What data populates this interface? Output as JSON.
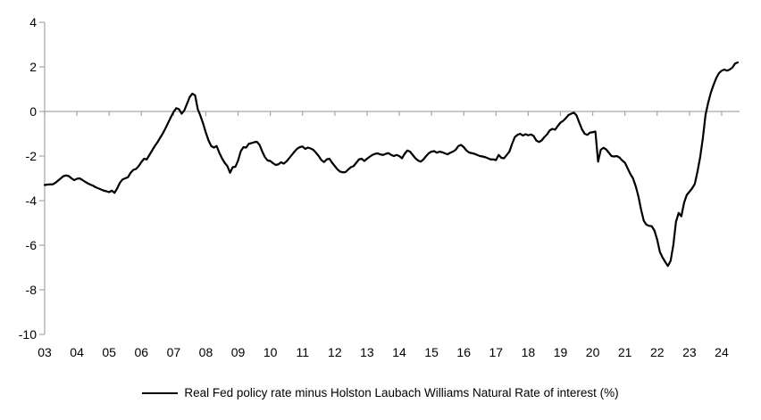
{
  "chart_data": {
    "type": "line",
    "title": "",
    "xlabel": "",
    "ylabel": "",
    "ylim": [
      -10,
      4
    ],
    "y_ticks": [
      4,
      2,
      0,
      -2,
      -4,
      -6,
      -8,
      -10
    ],
    "x_tick_labels": [
      "03",
      "04",
      "05",
      "06",
      "07",
      "08",
      "09",
      "10",
      "11",
      "12",
      "13",
      "14",
      "15",
      "16",
      "17",
      "18",
      "19",
      "20",
      "21",
      "22",
      "23",
      "24"
    ],
    "x_start": "2003-01",
    "x_end": "2024-07",
    "points_per_year": 12,
    "grid": "horizontal zero line only",
    "legend_position": "bottom-center",
    "axis_color": "#A6A6A6",
    "zero_line_color": "#A6A6A6",
    "text_color": "#000000",
    "series": [
      {
        "name": "Real Fed policy rate minus Holston Laubach Williams Natural Rate of interest (%)",
        "color": "#000000",
        "monthly_values": [
          -3.3,
          -3.28,
          -3.27,
          -3.27,
          -3.2,
          -3.1,
          -3.0,
          -2.9,
          -2.87,
          -2.9,
          -3.0,
          -3.08,
          -3.02,
          -3.0,
          -3.07,
          -3.15,
          -3.22,
          -3.28,
          -3.33,
          -3.4,
          -3.45,
          -3.5,
          -3.55,
          -3.58,
          -3.62,
          -3.55,
          -3.65,
          -3.45,
          -3.2,
          -3.05,
          -3.0,
          -2.95,
          -2.75,
          -2.62,
          -2.58,
          -2.45,
          -2.27,
          -2.12,
          -2.15,
          -1.95,
          -1.75,
          -1.55,
          -1.38,
          -1.18,
          -0.98,
          -0.75,
          -0.5,
          -0.25,
          -0.02,
          0.15,
          0.1,
          -0.1,
          0.05,
          0.35,
          0.65,
          0.8,
          0.72,
          0.1,
          -0.2,
          -0.55,
          -0.95,
          -1.3,
          -1.55,
          -1.62,
          -1.55,
          -1.85,
          -2.1,
          -2.3,
          -2.45,
          -2.75,
          -2.5,
          -2.48,
          -2.2,
          -1.78,
          -1.6,
          -1.62,
          -1.45,
          -1.42,
          -1.38,
          -1.36,
          -1.5,
          -1.8,
          -2.05,
          -2.2,
          -2.22,
          -2.32,
          -2.4,
          -2.37,
          -2.28,
          -2.34,
          -2.24,
          -2.1,
          -1.95,
          -1.8,
          -1.67,
          -1.6,
          -1.57,
          -1.68,
          -1.62,
          -1.66,
          -1.72,
          -1.85,
          -2.0,
          -2.18,
          -2.27,
          -2.15,
          -2.12,
          -2.3,
          -2.45,
          -2.6,
          -2.7,
          -2.73,
          -2.72,
          -2.6,
          -2.5,
          -2.45,
          -2.3,
          -2.15,
          -2.12,
          -2.22,
          -2.12,
          -2.03,
          -1.95,
          -1.9,
          -1.88,
          -1.93,
          -1.95,
          -1.9,
          -1.87,
          -1.95,
          -2.0,
          -1.95,
          -2.0,
          -2.1,
          -1.9,
          -1.75,
          -1.8,
          -1.95,
          -2.1,
          -2.2,
          -2.25,
          -2.15,
          -2.0,
          -1.87,
          -1.8,
          -1.78,
          -1.85,
          -1.8,
          -1.83,
          -1.88,
          -1.92,
          -1.85,
          -1.8,
          -1.72,
          -1.55,
          -1.5,
          -1.6,
          -1.75,
          -1.84,
          -1.87,
          -1.9,
          -1.95,
          -2.0,
          -2.02,
          -2.05,
          -2.1,
          -2.15,
          -2.15,
          -2.18,
          -1.95,
          -2.08,
          -2.1,
          -1.95,
          -1.8,
          -1.45,
          -1.15,
          -1.05,
          -1.0,
          -1.08,
          -1.02,
          -1.07,
          -1.03,
          -1.1,
          -1.3,
          -1.37,
          -1.3,
          -1.15,
          -1.03,
          -0.85,
          -0.78,
          -0.82,
          -0.65,
          -0.5,
          -0.42,
          -0.3,
          -0.16,
          -0.1,
          -0.05,
          -0.18,
          -0.5,
          -0.8,
          -1.0,
          -1.05,
          -0.95,
          -0.93,
          -0.9,
          -2.25,
          -1.72,
          -1.63,
          -1.7,
          -1.85,
          -2.0,
          -2.02,
          -2.0,
          -2.07,
          -2.2,
          -2.3,
          -2.55,
          -2.8,
          -3.0,
          -3.35,
          -3.8,
          -4.4,
          -4.9,
          -5.08,
          -5.13,
          -5.15,
          -5.35,
          -5.75,
          -6.3,
          -6.55,
          -6.75,
          -6.93,
          -6.7,
          -6.0,
          -4.95,
          -4.55,
          -4.7,
          -4.1,
          -3.75,
          -3.6,
          -3.45,
          -3.25,
          -2.7,
          -2.05,
          -1.2,
          -0.15,
          0.4,
          0.85,
          1.2,
          1.5,
          1.72,
          1.83,
          1.88,
          1.83,
          1.88,
          1.97,
          2.15,
          2.2
        ]
      }
    ]
  },
  "legend": {
    "label": "Real Fed policy rate minus Holston Laubach Williams Natural Rate of interest (%)"
  }
}
